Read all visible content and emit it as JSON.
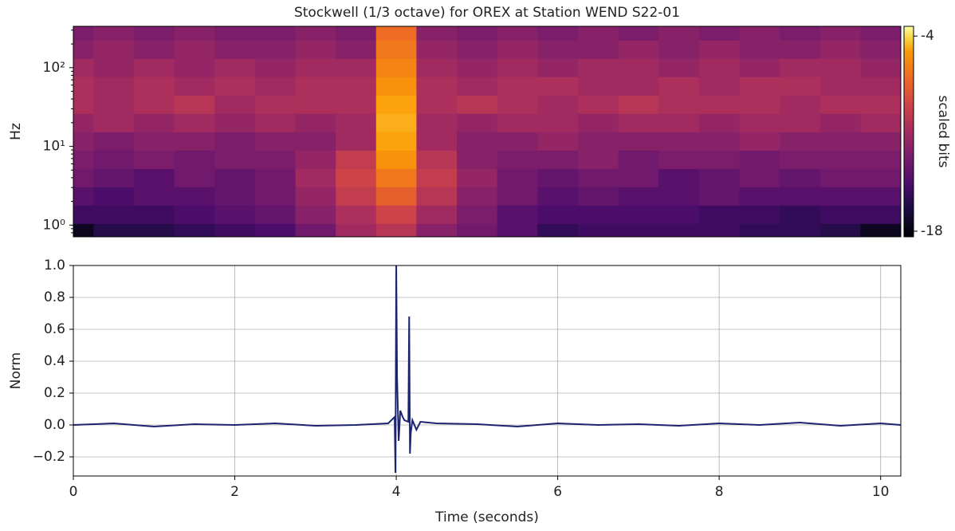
{
  "chart_data": [
    {
      "type": "heatmap",
      "title": "Stockwell (1/3 octave) for OREX at Station WEND S22-01",
      "ylabel": "Hz",
      "yscale": "log",
      "cmap": "inferno",
      "colorbar_label": "scaled bits",
      "clim": [
        -18.4,
        -3.3
      ],
      "cticks": [
        -4,
        -18
      ],
      "xlim": [
        0,
        10.25
      ],
      "ylim": [
        0.71,
        335
      ],
      "yticks": [
        {
          "value": 1,
          "label": "10⁰"
        },
        {
          "value": 10,
          "label": "10¹"
        },
        {
          "value": 100,
          "label": "10²"
        }
      ],
      "x": [
        0,
        0.5,
        1,
        1.5,
        2,
        2.5,
        3,
        3.5,
        4,
        4.5,
        5,
        5.5,
        6,
        6.5,
        7,
        7.5,
        8,
        8.5,
        9,
        9.5,
        10
      ],
      "y": [
        0.8,
        1.37,
        2.34,
        4.0,
        6.85,
        11.7,
        20,
        34.3,
        58.6,
        100,
        171,
        293
      ],
      "z": [
        [
          -17.5,
          -16,
          -16,
          -15.5,
          -15,
          -14.5,
          -13,
          -11,
          -10,
          -12,
          -13,
          -14,
          -15.5,
          -15,
          -15,
          -15,
          -15,
          -15.5,
          -15.5,
          -16,
          -17.5
        ],
        [
          -15,
          -15,
          -15,
          -14.5,
          -14,
          -13.5,
          -12,
          -10.5,
          -9,
          -11,
          -12.5,
          -14,
          -14.5,
          -14.5,
          -14.5,
          -14.5,
          -15,
          -15,
          -15.5,
          -15,
          -15
        ],
        [
          -14,
          -14.5,
          -14,
          -14,
          -13.5,
          -13,
          -11.5,
          -9.5,
          -7.5,
          -10,
          -12,
          -13,
          -14,
          -13.5,
          -14,
          -14,
          -13.5,
          -14,
          -14,
          -14,
          -14
        ],
        [
          -13,
          -13.5,
          -14,
          -13,
          -13.5,
          -13,
          -11,
          -9,
          -6.5,
          -9.5,
          -11.5,
          -13,
          -13.5,
          -13,
          -13,
          -14,
          -13.5,
          -13,
          -13.5,
          -13,
          -13
        ],
        [
          -12.5,
          -13,
          -12.5,
          -13,
          -12.5,
          -12.5,
          -11.5,
          -9.5,
          -5.5,
          -10,
          -12,
          -12.5,
          -12.5,
          -12,
          -13,
          -12.5,
          -12.5,
          -13,
          -12.5,
          -12.5,
          -12.5
        ],
        [
          -12,
          -12.5,
          -12,
          -12,
          -12.5,
          -12,
          -12,
          -11,
          -5,
          -11,
          -12,
          -12,
          -11.5,
          -12,
          -12,
          -12,
          -12,
          -11.5,
          -12,
          -12,
          -12
        ],
        [
          -11.5,
          -11,
          -11.5,
          -11,
          -11.5,
          -11,
          -11.5,
          -11,
          -4.8,
          -11,
          -11.5,
          -11,
          -11,
          -11.5,
          -11,
          -11,
          -11.5,
          -11,
          -11,
          -11.5,
          -11
        ],
        [
          -10.5,
          -11,
          -10.5,
          -10,
          -11,
          -10.5,
          -10.5,
          -10.5,
          -5,
          -10.5,
          -10,
          -10.5,
          -11,
          -10.5,
          -10,
          -10.5,
          -10.5,
          -10.5,
          -11,
          -10.5,
          -10.5
        ],
        [
          -10.5,
          -11,
          -10.5,
          -11,
          -10.5,
          -11,
          -10.5,
          -10.5,
          -5.5,
          -10.5,
          -11,
          -10.5,
          -10.5,
          -11,
          -11,
          -10.5,
          -11,
          -10.5,
          -10.5,
          -11,
          -11
        ],
        [
          -11,
          -11.5,
          -11,
          -11.5,
          -11,
          -11.5,
          -11,
          -11,
          -6,
          -11,
          -11.5,
          -11,
          -11.5,
          -11,
          -11,
          -11.5,
          -11,
          -11.5,
          -11,
          -11,
          -11.5
        ],
        [
          -12,
          -11.5,
          -12,
          -11.5,
          -12,
          -12,
          -11.5,
          -12,
          -6.5,
          -11.5,
          -12,
          -11.5,
          -12,
          -12,
          -11.5,
          -12,
          -11.5,
          -12,
          -12,
          -11.5,
          -12
        ],
        [
          -12.5,
          -12,
          -12.5,
          -12,
          -12.5,
          -12.5,
          -12,
          -12.5,
          -7,
          -12,
          -12.5,
          -12,
          -12.5,
          -12,
          -12.5,
          -12,
          -12.5,
          -12,
          -12.5,
          -12,
          -12.5
        ]
      ]
    },
    {
      "type": "line",
      "xlabel": "Time (seconds)",
      "ylabel": "Norm",
      "color": "#1c2470",
      "grid": true,
      "xlim": [
        0,
        10.25
      ],
      "ylim": [
        -0.32,
        1.0
      ],
      "xticks": [
        0,
        2,
        4,
        6,
        8,
        10
      ],
      "yticks": [
        {
          "value": -0.2,
          "label": "−0.2"
        },
        {
          "value": 0,
          "label": "0.0"
        },
        0.2,
        0.4,
        0.6,
        0.8,
        {
          "value": 1,
          "label": "1.0"
        }
      ],
      "x": [
        0,
        0.5,
        1,
        1.5,
        2,
        2.5,
        3,
        3.5,
        3.9,
        3.98,
        3.99,
        4.0,
        4.01,
        4.03,
        4.05,
        4.08,
        4.1,
        4.15,
        4.16,
        4.17,
        4.18,
        4.2,
        4.25,
        4.3,
        4.5,
        5,
        5.5,
        6,
        6.5,
        7,
        7.5,
        8,
        8.5,
        9,
        9.5,
        10,
        10.25
      ],
      "values": [
        0,
        0.01,
        -0.01,
        0.005,
        0,
        0.01,
        -0.005,
        0,
        0.01,
        0.05,
        -0.3,
        1.0,
        0.3,
        -0.1,
        0.09,
        0.05,
        0.03,
        0.02,
        0.68,
        -0.18,
        -0.05,
        0.03,
        -0.03,
        0.02,
        0.01,
        0.005,
        -0.01,
        0.01,
        0,
        0.005,
        -0.005,
        0.01,
        0,
        0.015,
        -0.005,
        0.01,
        0
      ]
    }
  ]
}
